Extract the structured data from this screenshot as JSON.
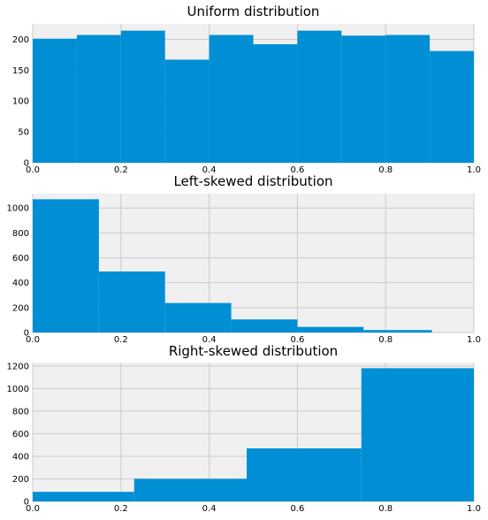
{
  "colors": {
    "bar": "#008fd5",
    "plot_background": "#f0f0f0",
    "grid": "#cbcbcb"
  },
  "chart_data": [
    {
      "type": "bar",
      "title": "Uniform distribution",
      "xlabel": "",
      "ylabel": "",
      "xlim": [
        0,
        1
      ],
      "ylim": [
        0,
        225
      ],
      "xticks": [
        0.0,
        0.2,
        0.4,
        0.6,
        0.8,
        1.0
      ],
      "xtick_labels": [
        "0.0",
        "0.2",
        "0.4",
        "0.6",
        "0.8",
        "1.0"
      ],
      "yticks": [
        0,
        50,
        100,
        150,
        200
      ],
      "ytick_labels": [
        "0",
        "50",
        "100",
        "150",
        "200"
      ],
      "grid": true,
      "bins": [
        {
          "x0": 0.0,
          "x1": 0.1,
          "value": 201
        },
        {
          "x0": 0.1,
          "x1": 0.2,
          "value": 207
        },
        {
          "x0": 0.2,
          "x1": 0.3,
          "value": 214
        },
        {
          "x0": 0.3,
          "x1": 0.4,
          "value": 167
        },
        {
          "x0": 0.4,
          "x1": 0.5,
          "value": 207
        },
        {
          "x0": 0.5,
          "x1": 0.6,
          "value": 192
        },
        {
          "x0": 0.6,
          "x1": 0.7,
          "value": 214
        },
        {
          "x0": 0.7,
          "x1": 0.8,
          "value": 206
        },
        {
          "x0": 0.8,
          "x1": 0.9,
          "value": 207
        },
        {
          "x0": 0.9,
          "x1": 1.0,
          "value": 181
        }
      ]
    },
    {
      "type": "bar",
      "title": "Left-skewed distribution",
      "xlabel": "",
      "ylabel": "",
      "xlim": [
        0,
        1
      ],
      "ylim": [
        0,
        1115
      ],
      "xticks": [
        0.0,
        0.2,
        0.4,
        0.6,
        0.8,
        1.0
      ],
      "xtick_labels": [
        "0.0",
        "0.2",
        "0.4",
        "0.6",
        "0.8",
        "1.0"
      ],
      "yticks": [
        0,
        200,
        400,
        600,
        800,
        1000
      ],
      "ytick_labels": [
        "0",
        "200",
        "400",
        "600",
        "800",
        "1000"
      ],
      "grid": true,
      "bins": [
        {
          "x0": 0.0,
          "x1": 0.15,
          "value": 1070
        },
        {
          "x0": 0.15,
          "x1": 0.3,
          "value": 490
        },
        {
          "x0": 0.3,
          "x1": 0.45,
          "value": 237
        },
        {
          "x0": 0.45,
          "x1": 0.6,
          "value": 105
        },
        {
          "x0": 0.6,
          "x1": 0.75,
          "value": 45
        },
        {
          "x0": 0.75,
          "x1": 0.905,
          "value": 20
        }
      ]
    },
    {
      "type": "bar",
      "title": "Right-skewed distribution",
      "xlabel": "",
      "ylabel": "",
      "xlim": [
        0,
        1
      ],
      "ylim": [
        0,
        1230
      ],
      "xticks": [
        0.0,
        0.2,
        0.4,
        0.6,
        0.8,
        1.0
      ],
      "xtick_labels": [
        "0.0",
        "0.2",
        "0.4",
        "0.6",
        "0.8",
        "1.0"
      ],
      "yticks": [
        0,
        200,
        400,
        600,
        800,
        1000,
        1200
      ],
      "ytick_labels": [
        "0",
        "200",
        "400",
        "600",
        "800",
        "1000",
        "1200"
      ],
      "grid": true,
      "bins": [
        {
          "x0": 0.0,
          "x1": 0.23,
          "value": 85
        },
        {
          "x0": 0.23,
          "x1": 0.485,
          "value": 200
        },
        {
          "x0": 0.485,
          "x1": 0.745,
          "value": 470
        },
        {
          "x0": 0.745,
          "x1": 1.0,
          "value": 1180
        }
      ]
    }
  ]
}
